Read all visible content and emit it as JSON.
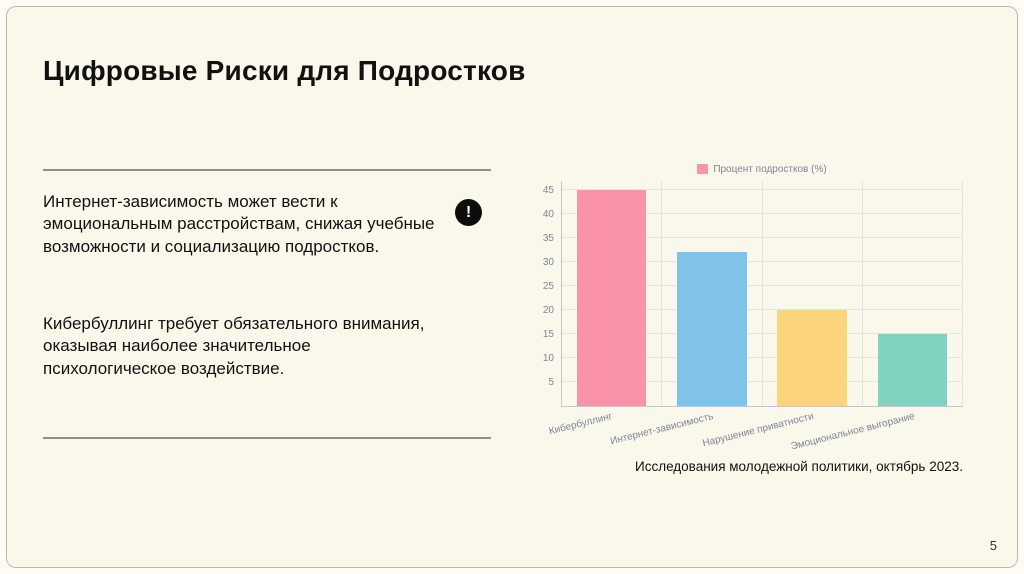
{
  "slide": {
    "title": "Цифровые Риски для Подростков",
    "paragraphs": [
      "Интернет-зависимость может вести к эмоциональным расстройствам, снижая учебные возможности и социализацию подростков.",
      "Кибербуллинг требует обязательного внимания, оказывая наиболее значительное психологическое воздействие."
    ],
    "alert_glyph": "!",
    "caption": "Исследования молодежной политики, октябрь 2023.",
    "page_number": "5"
  },
  "chart_data": {
    "type": "bar",
    "categories": [
      "Кибербуллинг",
      "Интернет-зависимость",
      "Нарушение приватности",
      "Эмоциональное выгорание"
    ],
    "values": [
      45,
      32,
      20,
      15
    ],
    "bar_colors": [
      "#f893aa",
      "#7fc3e8",
      "#fbd47c",
      "#7fd3c0"
    ],
    "legend": {
      "label": "Процент подростков (%)",
      "color": "#f893aa"
    },
    "title": "",
    "xlabel": "",
    "ylabel": "",
    "ylim": [
      0,
      45
    ],
    "ytick_step": 5,
    "grid": true,
    "legend_position": "top-center"
  },
  "colors": {
    "slide_background": "#faf7eb",
    "frame_border": "#b9b9b2",
    "text": "#111111",
    "divider": "#8f8f8f",
    "axis_text": "#7d8697",
    "gridline": "#e4e4de",
    "axis_line": "#c3c8d0"
  }
}
